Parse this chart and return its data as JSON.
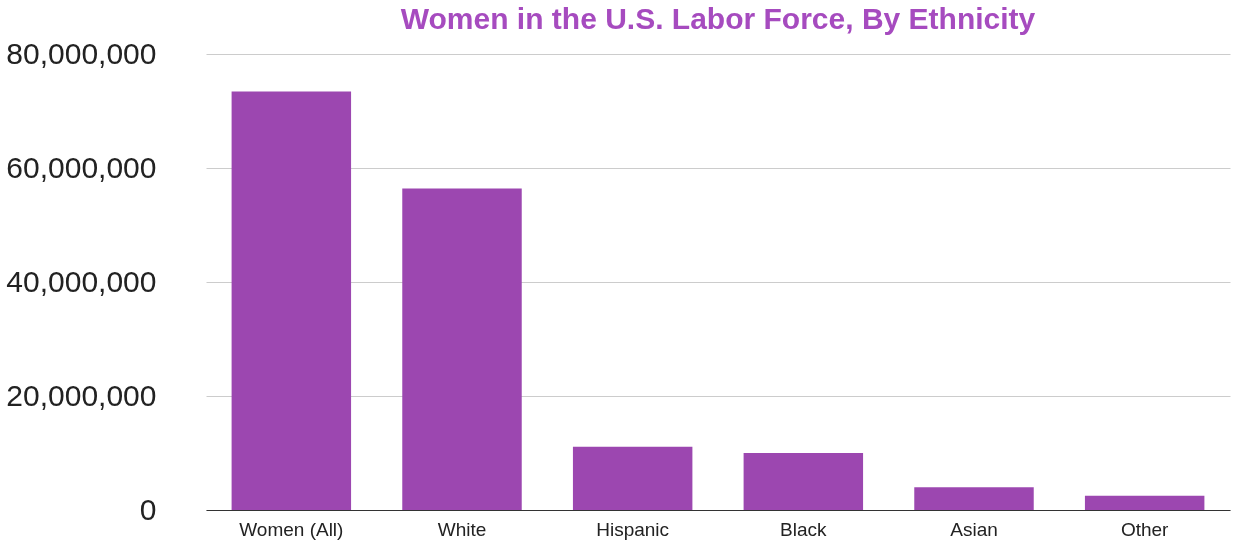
{
  "chart_data": {
    "type": "bar",
    "title": "Women in the U.S. Labor Force, By Ethnicity",
    "categories": [
      "Women (All)",
      "White",
      "Hispanic",
      "Black",
      "Asian",
      "Other"
    ],
    "values": [
      73400000,
      56400000,
      11100000,
      10000000,
      4000000,
      2500000
    ],
    "color": "#9c47b0",
    "ylim": [
      0,
      80000000
    ],
    "yticks": [
      0,
      {
        "value": 20000000,
        "label": "20,000,000"
      },
      {
        "value": 40000000,
        "label": "40,000,000"
      },
      {
        "value": 60000000,
        "label": "60,000,000"
      },
      {
        "value": 80000000,
        "label": "80,000,000"
      }
    ],
    "grid": "y"
  }
}
